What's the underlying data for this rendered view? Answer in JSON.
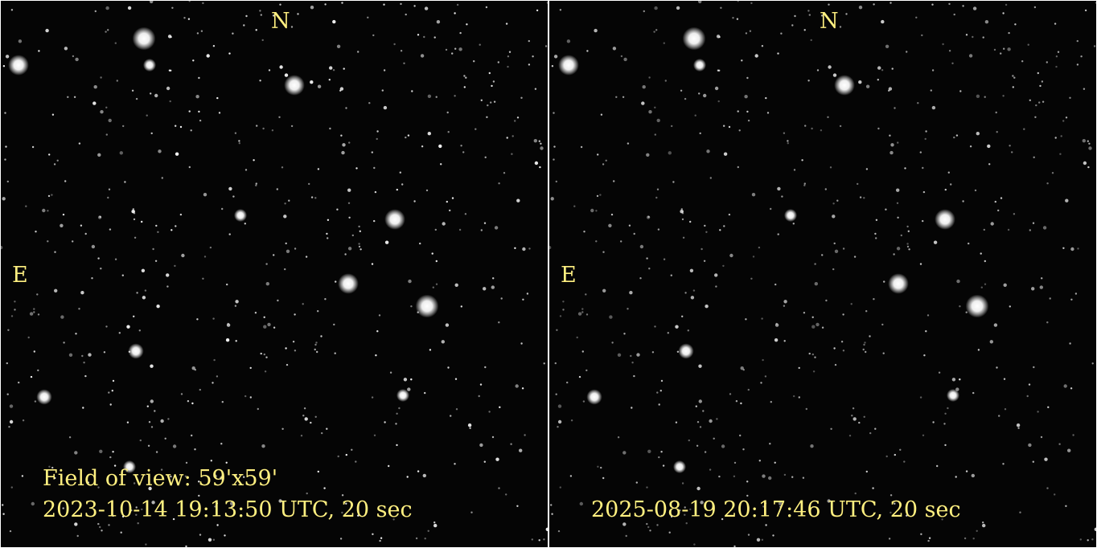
{
  "colors": {
    "label": "#fff080",
    "sky": "#050505",
    "divider": "#ffffff"
  },
  "panels": [
    {
      "north_label": "N",
      "east_label": "E",
      "field_of_view": "Field of view: 59'x59'",
      "timestamp": "2023-10-14 19:13:50 UTC, 20 sec"
    },
    {
      "north_label": "N",
      "east_label": "E",
      "timestamp": "2025-08-19 20:17:46 UTC, 20 sec"
    }
  ]
}
